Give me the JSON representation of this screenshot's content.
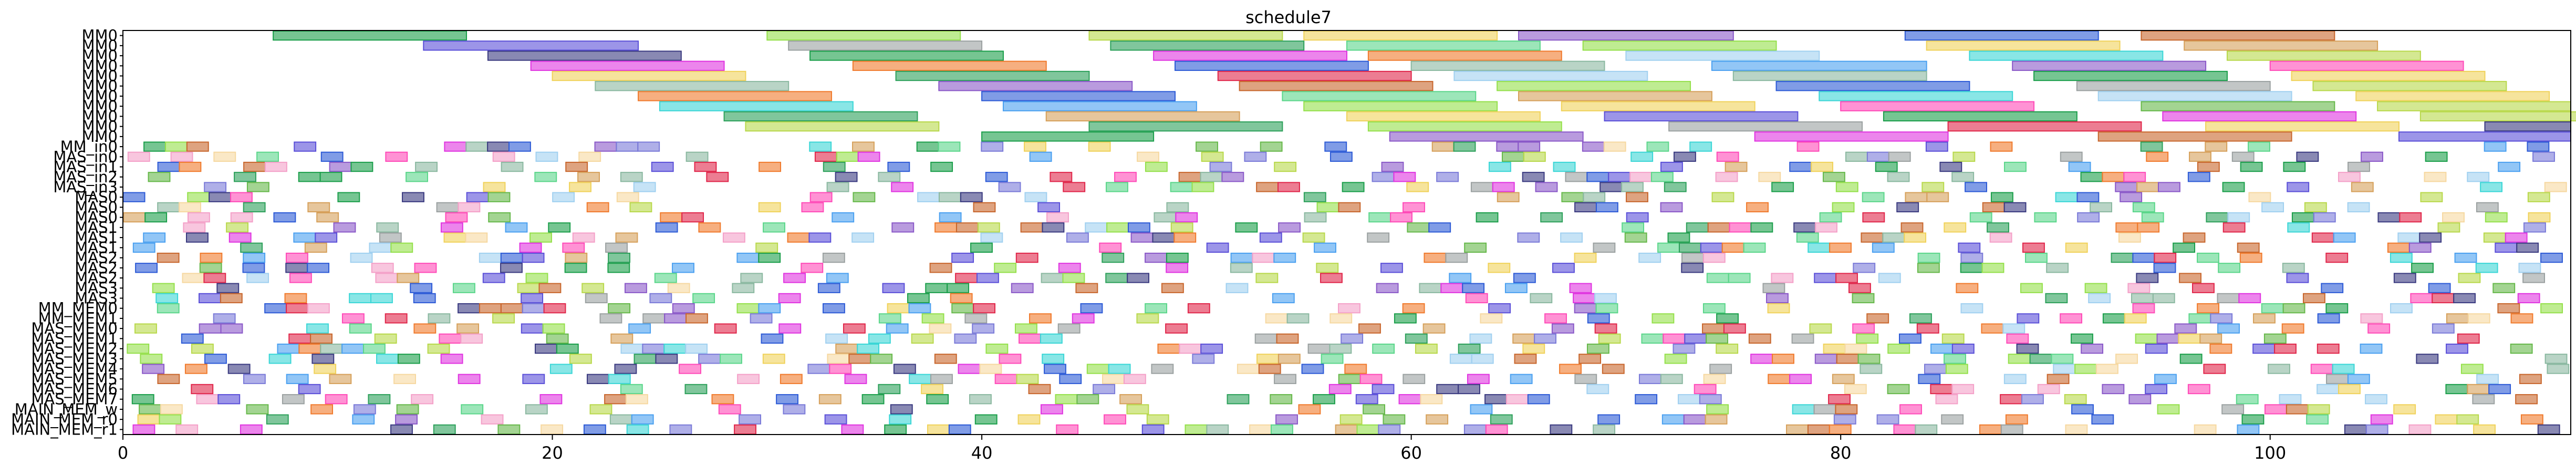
{
  "chart_data": {
    "type": "gantt",
    "title": "schedule7",
    "xlabel": "",
    "ylabel": "",
    "xlim": [
      0,
      114
    ],
    "xticks": [
      "0",
      "20",
      "40",
      "60",
      "80",
      "100"
    ],
    "xtick_values": [
      0,
      20,
      40,
      60,
      80,
      100
    ],
    "grid": false,
    "legend": "none",
    "bar_alpha": 0.6,
    "palette": [
      "#2ca05a",
      "#5a4fd8",
      "#1a9e4a",
      "#f07a2c",
      "#e033e0",
      "#3ad6d6",
      "#b8d84a",
      "#e0264a",
      "#7a7ad8",
      "#4aa0f0",
      "#f0d25a",
      "#8a58c8",
      "#94e04a",
      "#2c5ad6",
      "#c8662c",
      "#9aa0a0",
      "#f4a0c8",
      "#5ad68a",
      "#d6a05a",
      "#a0d0f0",
      "#ff4ab8",
      "#66b84a",
      "#f6d8a0",
      "#3a3a80",
      "#8ab8a0"
    ],
    "rows": [
      "MM0",
      "MM0",
      "MM0",
      "MM0",
      "MM0",
      "MM0",
      "MM0",
      "MM0",
      "MM0",
      "MM0",
      "MM0",
      "MM_in0",
      "MAS_in0",
      "MAS_in1",
      "MAS_in2",
      "MAS_in3",
      "MAS0",
      "MAS0",
      "MAS0",
      "MAS1",
      "MAS1",
      "MAS1",
      "MAS2",
      "MAS2",
      "MAS2",
      "MAS3",
      "MAS3",
      "MM_MEM0",
      "MM_MEM1",
      "MAS_MEM0",
      "MAS_MEM1",
      "MAS_MEM2",
      "MAS_MEM3",
      "MAS_MEM4",
      "MAS_MEM5",
      "MAS_MEM6",
      "MAS_MEM7",
      "MAIN_MEM_w",
      "MAIN_MEM_r0",
      "MAIN_MEM_r1"
    ],
    "tasks": [
      {
        "row": 0,
        "start": 7,
        "dur": 9,
        "c": 2
      },
      {
        "row": 0,
        "start": 30,
        "dur": 9,
        "c": 12
      },
      {
        "row": 0,
        "start": 45,
        "dur": 9,
        "c": 6
      },
      {
        "row": 0,
        "start": 55,
        "dur": 9,
        "c": 10
      },
      {
        "row": 0,
        "start": 65,
        "dur": 10,
        "c": 11
      },
      {
        "row": 0,
        "start": 83,
        "dur": 9,
        "c": 13
      },
      {
        "row": 0,
        "start": 94,
        "dur": 9,
        "c": 14
      },
      {
        "row": 1,
        "start": 14,
        "dur": 10,
        "c": 1
      },
      {
        "row": 1,
        "start": 31,
        "dur": 9,
        "c": 15
      },
      {
        "row": 1,
        "start": 46,
        "dur": 9,
        "c": 0
      },
      {
        "row": 1,
        "start": 57,
        "dur": 9,
        "c": 17
      },
      {
        "row": 1,
        "start": 68,
        "dur": 9,
        "c": 12
      },
      {
        "row": 1,
        "start": 84,
        "dur": 9,
        "c": 10
      },
      {
        "row": 1,
        "start": 96,
        "dur": 9,
        "c": 18
      },
      {
        "row": 2,
        "start": 17,
        "dur": 9,
        "c": 23
      },
      {
        "row": 2,
        "start": 32,
        "dur": 9,
        "c": 2
      },
      {
        "row": 2,
        "start": 48,
        "dur": 9,
        "c": 4
      },
      {
        "row": 2,
        "start": 58,
        "dur": 9,
        "c": 3
      },
      {
        "row": 2,
        "start": 70,
        "dur": 9,
        "c": 19
      },
      {
        "row": 2,
        "start": 86,
        "dur": 9,
        "c": 5
      },
      {
        "row": 2,
        "start": 98,
        "dur": 9,
        "c": 6
      },
      {
        "row": 3,
        "start": 19,
        "dur": 9,
        "c": 4
      },
      {
        "row": 3,
        "start": 34,
        "dur": 9,
        "c": 3
      },
      {
        "row": 3,
        "start": 49,
        "dur": 9,
        "c": 13
      },
      {
        "row": 3,
        "start": 60,
        "dur": 9,
        "c": 24
      },
      {
        "row": 3,
        "start": 74,
        "dur": 10,
        "c": 9
      },
      {
        "row": 3,
        "start": 88,
        "dur": 9,
        "c": 11
      },
      {
        "row": 3,
        "start": 100,
        "dur": 9,
        "c": 20
      },
      {
        "row": 4,
        "start": 20,
        "dur": 9,
        "c": 10
      },
      {
        "row": 4,
        "start": 36,
        "dur": 9,
        "c": 0
      },
      {
        "row": 4,
        "start": 51,
        "dur": 9,
        "c": 7
      },
      {
        "row": 4,
        "start": 62,
        "dur": 9,
        "c": 19
      },
      {
        "row": 4,
        "start": 75,
        "dur": 9,
        "c": 24
      },
      {
        "row": 4,
        "start": 89,
        "dur": 9,
        "c": 2
      },
      {
        "row": 4,
        "start": 101,
        "dur": 9,
        "c": 10
      },
      {
        "row": 5,
        "start": 22,
        "dur": 9,
        "c": 24
      },
      {
        "row": 5,
        "start": 38,
        "dur": 9,
        "c": 11
      },
      {
        "row": 5,
        "start": 52,
        "dur": 9,
        "c": 14
      },
      {
        "row": 5,
        "start": 64,
        "dur": 9,
        "c": 12
      },
      {
        "row": 5,
        "start": 77,
        "dur": 9,
        "c": 13
      },
      {
        "row": 5,
        "start": 91,
        "dur": 9,
        "c": 15
      },
      {
        "row": 5,
        "start": 102,
        "dur": 9,
        "c": 6
      },
      {
        "row": 6,
        "start": 24,
        "dur": 9,
        "c": 3
      },
      {
        "row": 6,
        "start": 40,
        "dur": 9,
        "c": 13
      },
      {
        "row": 6,
        "start": 54,
        "dur": 9,
        "c": 17
      },
      {
        "row": 6,
        "start": 65,
        "dur": 9,
        "c": 18
      },
      {
        "row": 6,
        "start": 79,
        "dur": 9,
        "c": 5
      },
      {
        "row": 6,
        "start": 92,
        "dur": 9,
        "c": 19
      },
      {
        "row": 6,
        "start": 104,
        "dur": 9,
        "c": 10
      },
      {
        "row": 7,
        "start": 25,
        "dur": 9,
        "c": 5
      },
      {
        "row": 7,
        "start": 41,
        "dur": 9,
        "c": 9
      },
      {
        "row": 7,
        "start": 55,
        "dur": 9,
        "c": 12
      },
      {
        "row": 7,
        "start": 67,
        "dur": 9,
        "c": 10
      },
      {
        "row": 7,
        "start": 80,
        "dur": 9,
        "c": 20
      },
      {
        "row": 7,
        "start": 94,
        "dur": 9,
        "c": 21
      },
      {
        "row": 7,
        "start": 105,
        "dur": 9,
        "c": 6
      },
      {
        "row": 8,
        "start": 28,
        "dur": 9,
        "c": 0
      },
      {
        "row": 8,
        "start": 43,
        "dur": 9,
        "c": 18
      },
      {
        "row": 8,
        "start": 57,
        "dur": 9,
        "c": 10
      },
      {
        "row": 8,
        "start": 69,
        "dur": 9,
        "c": 1
      },
      {
        "row": 8,
        "start": 82,
        "dur": 9,
        "c": 2
      },
      {
        "row": 8,
        "start": 95,
        "dur": 9,
        "c": 4
      },
      {
        "row": 8,
        "start": 107,
        "dur": 9,
        "c": 6
      },
      {
        "row": 9,
        "start": 29,
        "dur": 9,
        "c": 6
      },
      {
        "row": 9,
        "start": 45,
        "dur": 9,
        "c": 0
      },
      {
        "row": 9,
        "start": 58,
        "dur": 9,
        "c": 12
      },
      {
        "row": 9,
        "start": 72,
        "dur": 9,
        "c": 15
      },
      {
        "row": 9,
        "start": 85,
        "dur": 9,
        "c": 7
      },
      {
        "row": 9,
        "start": 97,
        "dur": 9,
        "c": 10
      },
      {
        "row": 9,
        "start": 110,
        "dur": 4,
        "c": 23
      },
      {
        "row": 10,
        "start": 40,
        "dur": 8,
        "c": 2
      },
      {
        "row": 10,
        "start": 59,
        "dur": 9,
        "c": 11
      },
      {
        "row": 10,
        "start": 76,
        "dur": 9,
        "c": 4
      },
      {
        "row": 10,
        "start": 92,
        "dur": 9,
        "c": 14
      },
      {
        "row": 10,
        "start": 106,
        "dur": 8,
        "c": 1
      }
    ],
    "dense_rows": [
      11,
      12,
      13,
      14,
      15,
      16,
      17,
      18,
      19,
      20,
      21,
      22,
      23,
      24,
      25,
      26,
      27,
      28,
      29,
      30,
      31,
      32,
      33,
      34,
      35,
      36,
      37,
      38,
      39
    ]
  }
}
